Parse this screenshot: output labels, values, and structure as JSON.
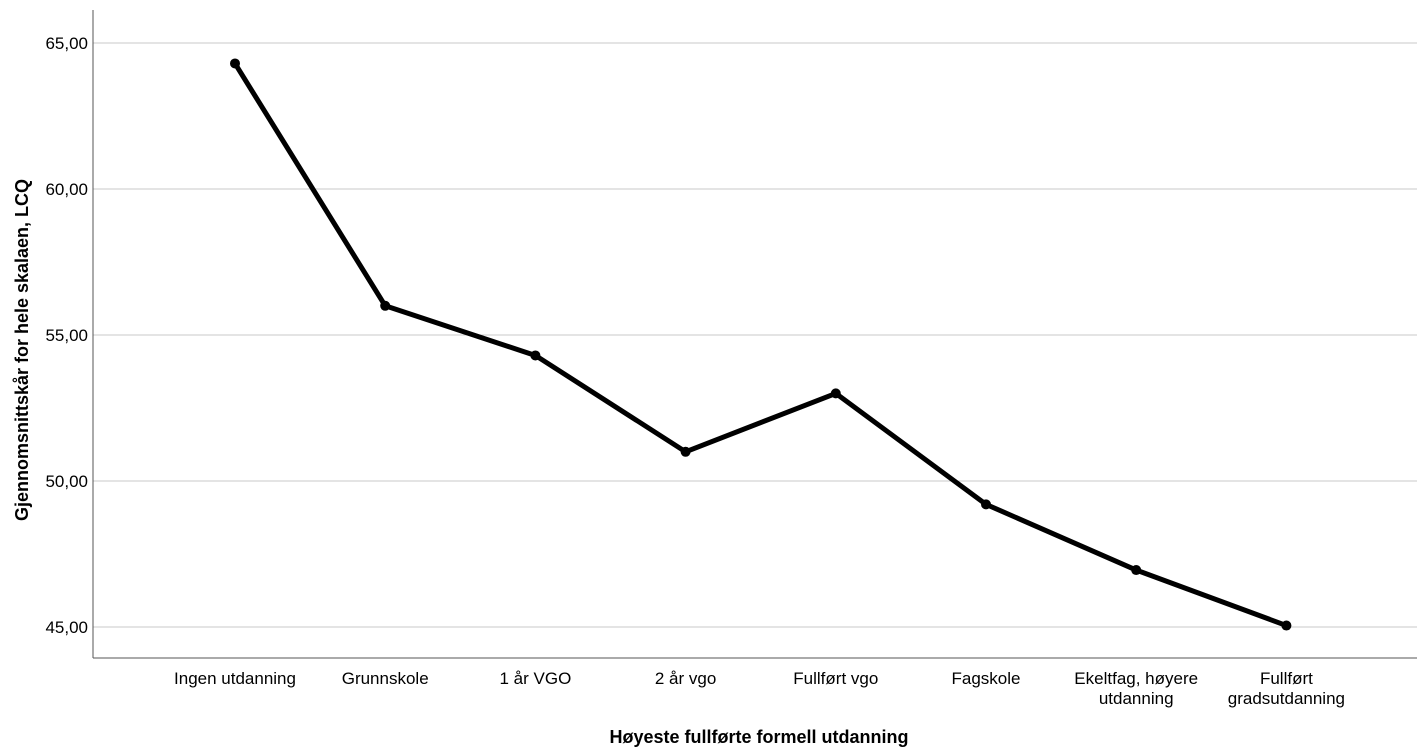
{
  "chart_data": {
    "type": "line",
    "title": "",
    "xlabel": "Høyeste fullførte formell utdanning",
    "ylabel": "Gjennomsnittskår for hele skalaen, LCQ",
    "categories": [
      [
        "Ingen utdanning"
      ],
      [
        "Grunnskole"
      ],
      [
        "1 år VGO"
      ],
      [
        "2 år vgo"
      ],
      [
        "Fullført vgo"
      ],
      [
        "Fagskole"
      ],
      [
        "Ekeltfag, høyere",
        "utdanning"
      ],
      [
        "Fullført",
        "gradsutdanning"
      ]
    ],
    "series": [
      {
        "values": [
          64.3,
          56.0,
          54.3,
          51.0,
          53.0,
          49.2,
          46.95,
          45.05
        ]
      }
    ],
    "yticks": [
      "45,00",
      "50,00",
      "55,00",
      "60,00",
      "65,00"
    ],
    "ytick_values": [
      45,
      50,
      55,
      60,
      65
    ],
    "ylim": [
      44.5,
      66.0
    ],
    "grid": true,
    "legend": "none",
    "line_color": "#000000",
    "grid_color": "#c8c8c8"
  }
}
